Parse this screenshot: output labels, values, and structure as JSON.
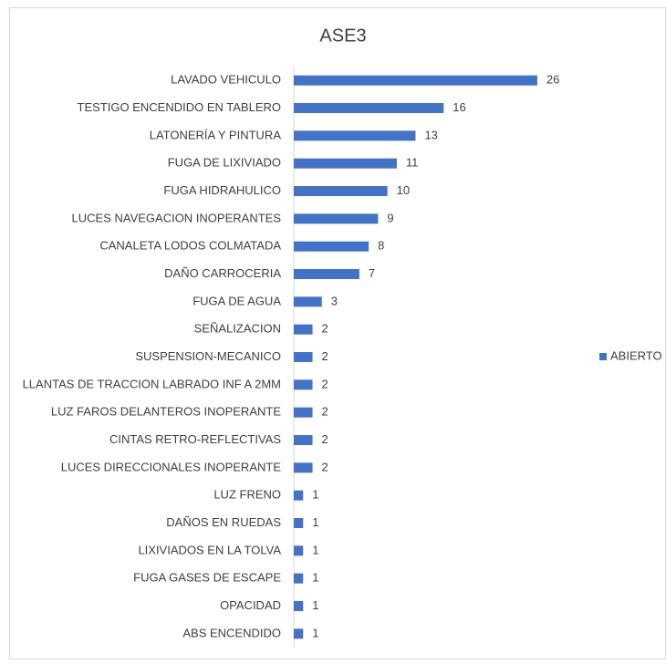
{
  "chart_data": {
    "type": "bar",
    "orientation": "horizontal",
    "title": "ASE3",
    "categories": [
      "LAVADO VEHICULO",
      "TESTIGO ENCENDIDO EN TABLERO",
      "LATONERÍA Y PINTURA",
      "FUGA DE LIXIVIADO",
      "FUGA HIDRAHULICO",
      "LUCES NAVEGACION INOPERANTES",
      "CANALETA LODOS COLMATADA",
      "DAÑO CARROCERIA",
      "FUGA DE AGUA ",
      "SEÑALIZACION",
      "SUSPENSION-MECANICO",
      "LLANTAS DE TRACCION LABRADO INF A 2MM",
      "LUZ FAROS DELANTEROS INOPERANTE",
      "CINTAS RETRO-REFLECTIVAS",
      "LUCES DIRECCIONALES INOPERANTE",
      "LUZ FRENO",
      "DAÑOS EN RUEDAS",
      "LIXIVIADOS EN LA TOLVA",
      "FUGA GASES DE ESCAPE",
      "OPACIDAD",
      "ABS ENCENDIDO"
    ],
    "series": [
      {
        "name": "ABIERTO",
        "color": "#4472c4",
        "values": [
          26,
          16,
          13,
          11,
          10,
          9,
          8,
          7,
          3,
          2,
          2,
          2,
          2,
          2,
          2,
          1,
          1,
          1,
          1,
          1,
          1
        ]
      }
    ],
    "xlim": [
      0,
      30
    ],
    "legend": "right"
  }
}
